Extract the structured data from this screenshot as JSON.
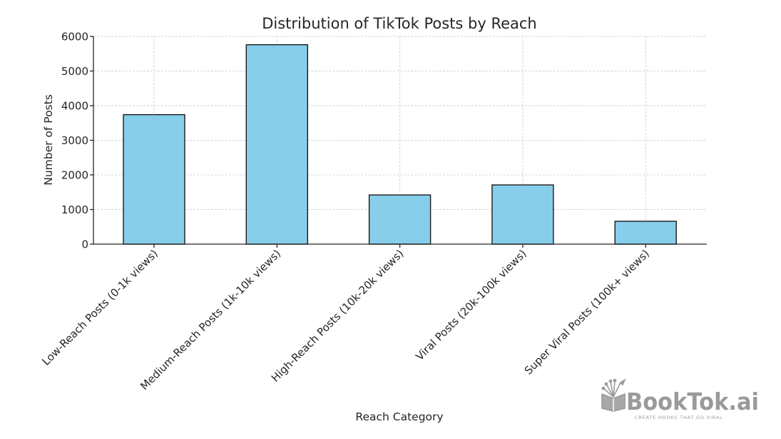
{
  "chart_data": {
    "type": "bar",
    "title": "Distribution of TikTok Posts by Reach",
    "xlabel": "Reach Category",
    "ylabel": "Number of Posts",
    "categories": [
      "Low-Reach Posts (0-1k views)",
      "Medium-Reach Posts (1k-10k views)",
      "High-Reach Posts (10k-20k views)",
      "Viral Posts (20k-100k views)",
      "Super Viral Posts (100k+ views)"
    ],
    "values": [
      3740,
      5760,
      1420,
      1710,
      660
    ],
    "ylim": [
      0,
      6000
    ],
    "yticks": [
      0,
      1000,
      2000,
      3000,
      4000,
      5000,
      6000
    ],
    "grid": true,
    "legend": null,
    "bar_color": "#87CEEB",
    "edge_color": "#1a1a1a"
  },
  "watermark": {
    "brand": "BookTok.ai",
    "tagline": "CREATE HOOKS THAT GO VIRAL",
    "color": "#9a9a9a"
  }
}
